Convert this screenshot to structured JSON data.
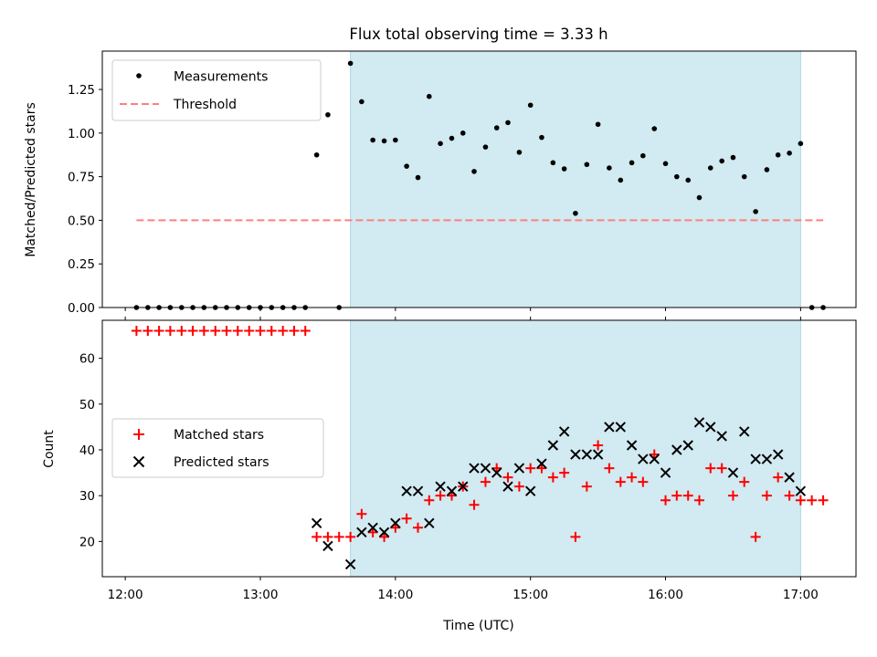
{
  "chart_data": {
    "type": "scatter",
    "title": "Flux total observing time = 3.33 h",
    "xlabel": "Time (UTC)",
    "x_ticks": [
      {
        "value": 12.0,
        "label": "12:00"
      },
      {
        "value": 13.0,
        "label": "13:00"
      },
      {
        "value": 14.0,
        "label": "14:00"
      },
      {
        "value": 15.0,
        "label": "15:00"
      },
      {
        "value": 16.0,
        "label": "16:00"
      },
      {
        "value": 17.0,
        "label": "17:00"
      }
    ],
    "xlim": [
      11.83,
      17.41
    ],
    "observing_window": [
      13.667,
      17.0
    ],
    "panels": [
      {
        "id": "ratio",
        "ylabel": "Matched/Predicted stars",
        "ylim": [
          0,
          1.47
        ],
        "y_ticks": [
          {
            "value": 0,
            "label": "0.00"
          },
          {
            "value": 0.25,
            "label": "0.25"
          },
          {
            "value": 0.5,
            "label": "0.50"
          },
          {
            "value": 0.75,
            "label": "0.75"
          },
          {
            "value": 1.0,
            "label": "1.00"
          },
          {
            "value": 1.25,
            "label": "1.25"
          }
        ],
        "legend": {
          "position": "upper-left",
          "entries": [
            {
              "label": "Measurements",
              "marker": "dot",
              "color": "#000000"
            },
            {
              "label": "Threshold",
              "marker": "dashed",
              "color": "#ff7f7f"
            }
          ]
        },
        "threshold": {
          "value": 0.5,
          "x_range": [
            12.083,
            17.167
          ],
          "color": "#ff7f7f"
        },
        "series": [
          {
            "name": "Measurements",
            "marker": "dot",
            "color": "#000000",
            "points": [
              [
                12.083,
                0
              ],
              [
                12.167,
                0
              ],
              [
                12.25,
                0
              ],
              [
                12.333,
                0
              ],
              [
                12.417,
                0
              ],
              [
                12.5,
                0
              ],
              [
                12.583,
                0
              ],
              [
                12.667,
                0
              ],
              [
                12.75,
                0
              ],
              [
                12.833,
                0
              ],
              [
                12.917,
                0
              ],
              [
                13.0,
                0
              ],
              [
                13.083,
                0
              ],
              [
                13.167,
                0
              ],
              [
                13.25,
                0
              ],
              [
                13.333,
                0
              ],
              [
                13.417,
                0.875
              ],
              [
                13.5,
                1.105
              ],
              [
                13.583,
                0
              ],
              [
                13.667,
                1.4
              ],
              [
                13.75,
                1.18
              ],
              [
                13.833,
                0.96
              ],
              [
                13.917,
                0.955
              ],
              [
                14.0,
                0.96
              ],
              [
                14.083,
                0.81
              ],
              [
                14.167,
                0.745
              ],
              [
                14.25,
                1.21
              ],
              [
                14.333,
                0.94
              ],
              [
                14.417,
                0.97
              ],
              [
                14.5,
                1.0
              ],
              [
                14.583,
                0.78
              ],
              [
                14.667,
                0.92
              ],
              [
                14.75,
                1.03
              ],
              [
                14.833,
                1.06
              ],
              [
                14.917,
                0.89
              ],
              [
                15.0,
                1.16
              ],
              [
                15.083,
                0.975
              ],
              [
                15.167,
                0.83
              ],
              [
                15.25,
                0.795
              ],
              [
                15.333,
                0.54
              ],
              [
                15.417,
                0.82
              ],
              [
                15.5,
                1.05
              ],
              [
                15.583,
                0.8
              ],
              [
                15.667,
                0.73
              ],
              [
                15.75,
                0.83
              ],
              [
                15.833,
                0.87
              ],
              [
                15.917,
                1.025
              ],
              [
                16.0,
                0.825
              ],
              [
                16.083,
                0.75
              ],
              [
                16.167,
                0.73
              ],
              [
                16.25,
                0.63
              ],
              [
                16.333,
                0.8
              ],
              [
                16.417,
                0.84
              ],
              [
                16.5,
                0.86
              ],
              [
                16.583,
                0.75
              ],
              [
                16.667,
                0.55
              ],
              [
                16.75,
                0.79
              ],
              [
                16.833,
                0.875
              ],
              [
                16.917,
                0.885
              ],
              [
                17.0,
                0.94
              ],
              [
                17.083,
                0
              ],
              [
                17.167,
                0
              ]
            ]
          }
        ]
      },
      {
        "id": "counts",
        "ylabel": "Count",
        "ylim": [
          12.3,
          68.3
        ],
        "y_ticks": [
          {
            "value": 20,
            "label": "20"
          },
          {
            "value": 30,
            "label": "30"
          },
          {
            "value": 40,
            "label": "40"
          },
          {
            "value": 50,
            "label": "50"
          },
          {
            "value": 60,
            "label": "60"
          }
        ],
        "legend": {
          "position": "center-left",
          "entries": [
            {
              "label": "Matched stars",
              "marker": "plus",
              "color": "#ff0000"
            },
            {
              "label": "Predicted stars",
              "marker": "x",
              "color": "#000000"
            }
          ]
        },
        "series": [
          {
            "name": "Matched stars",
            "marker": "plus",
            "color": "#ff0000",
            "points": [
              [
                12.083,
                66
              ],
              [
                12.167,
                66
              ],
              [
                12.25,
                66
              ],
              [
                12.333,
                66
              ],
              [
                12.417,
                66
              ],
              [
                12.5,
                66
              ],
              [
                12.583,
                66
              ],
              [
                12.667,
                66
              ],
              [
                12.75,
                66
              ],
              [
                12.833,
                66
              ],
              [
                12.917,
                66
              ],
              [
                13.0,
                66
              ],
              [
                13.083,
                66
              ],
              [
                13.167,
                66
              ],
              [
                13.25,
                66
              ],
              [
                13.333,
                66
              ],
              [
                13.417,
                21
              ],
              [
                13.5,
                21
              ],
              [
                13.583,
                21
              ],
              [
                13.667,
                21
              ],
              [
                13.75,
                26
              ],
              [
                13.833,
                22
              ],
              [
                13.917,
                21
              ],
              [
                14.0,
                23
              ],
              [
                14.083,
                25
              ],
              [
                14.167,
                23
              ],
              [
                14.25,
                29
              ],
              [
                14.333,
                30
              ],
              [
                14.417,
                30
              ],
              [
                14.5,
                32
              ],
              [
                14.583,
                28
              ],
              [
                14.667,
                33
              ],
              [
                14.75,
                36
              ],
              [
                14.833,
                34
              ],
              [
                14.917,
                32
              ],
              [
                15.0,
                36
              ],
              [
                15.083,
                36
              ],
              [
                15.167,
                34
              ],
              [
                15.25,
                35
              ],
              [
                15.333,
                21
              ],
              [
                15.417,
                32
              ],
              [
                15.5,
                41
              ],
              [
                15.583,
                36
              ],
              [
                15.667,
                33
              ],
              [
                15.75,
                34
              ],
              [
                15.833,
                33
              ],
              [
                15.917,
                39
              ],
              [
                16.0,
                29
              ],
              [
                16.083,
                30
              ],
              [
                16.167,
                30
              ],
              [
                16.25,
                29
              ],
              [
                16.333,
                36
              ],
              [
                16.417,
                36
              ],
              [
                16.5,
                30
              ],
              [
                16.583,
                33
              ],
              [
                16.667,
                21
              ],
              [
                16.75,
                30
              ],
              [
                16.833,
                34
              ],
              [
                16.917,
                30
              ],
              [
                17.0,
                29
              ],
              [
                17.083,
                29
              ],
              [
                17.167,
                29
              ]
            ]
          },
          {
            "name": "Predicted stars",
            "marker": "x",
            "color": "#000000",
            "points": [
              [
                13.417,
                24
              ],
              [
                13.5,
                19
              ],
              [
                13.667,
                15
              ],
              [
                13.75,
                22
              ],
              [
                13.833,
                23
              ],
              [
                13.917,
                22
              ],
              [
                14.0,
                24
              ],
              [
                14.083,
                31
              ],
              [
                14.167,
                31
              ],
              [
                14.25,
                24
              ],
              [
                14.333,
                32
              ],
              [
                14.417,
                31
              ],
              [
                14.5,
                32
              ],
              [
                14.583,
                36
              ],
              [
                14.667,
                36
              ],
              [
                14.75,
                35
              ],
              [
                14.833,
                32
              ],
              [
                14.917,
                36
              ],
              [
                15.0,
                31
              ],
              [
                15.083,
                37
              ],
              [
                15.167,
                41
              ],
              [
                15.25,
                44
              ],
              [
                15.333,
                39
              ],
              [
                15.417,
                39
              ],
              [
                15.5,
                39
              ],
              [
                15.583,
                45
              ],
              [
                15.667,
                45
              ],
              [
                15.75,
                41
              ],
              [
                15.833,
                38
              ],
              [
                15.917,
                38
              ],
              [
                16.0,
                35
              ],
              [
                16.083,
                40
              ],
              [
                16.167,
                41
              ],
              [
                16.25,
                46
              ],
              [
                16.333,
                45
              ],
              [
                16.417,
                43
              ],
              [
                16.5,
                35
              ],
              [
                16.583,
                44
              ],
              [
                16.667,
                38
              ],
              [
                16.75,
                38
              ],
              [
                16.833,
                39
              ],
              [
                16.917,
                34
              ],
              [
                17.0,
                31
              ]
            ]
          }
        ]
      }
    ]
  },
  "colors": {
    "observing_band": "#add8e6",
    "threshold": "#ff7f7f",
    "matched": "#ff0000",
    "predicted": "#000000"
  }
}
